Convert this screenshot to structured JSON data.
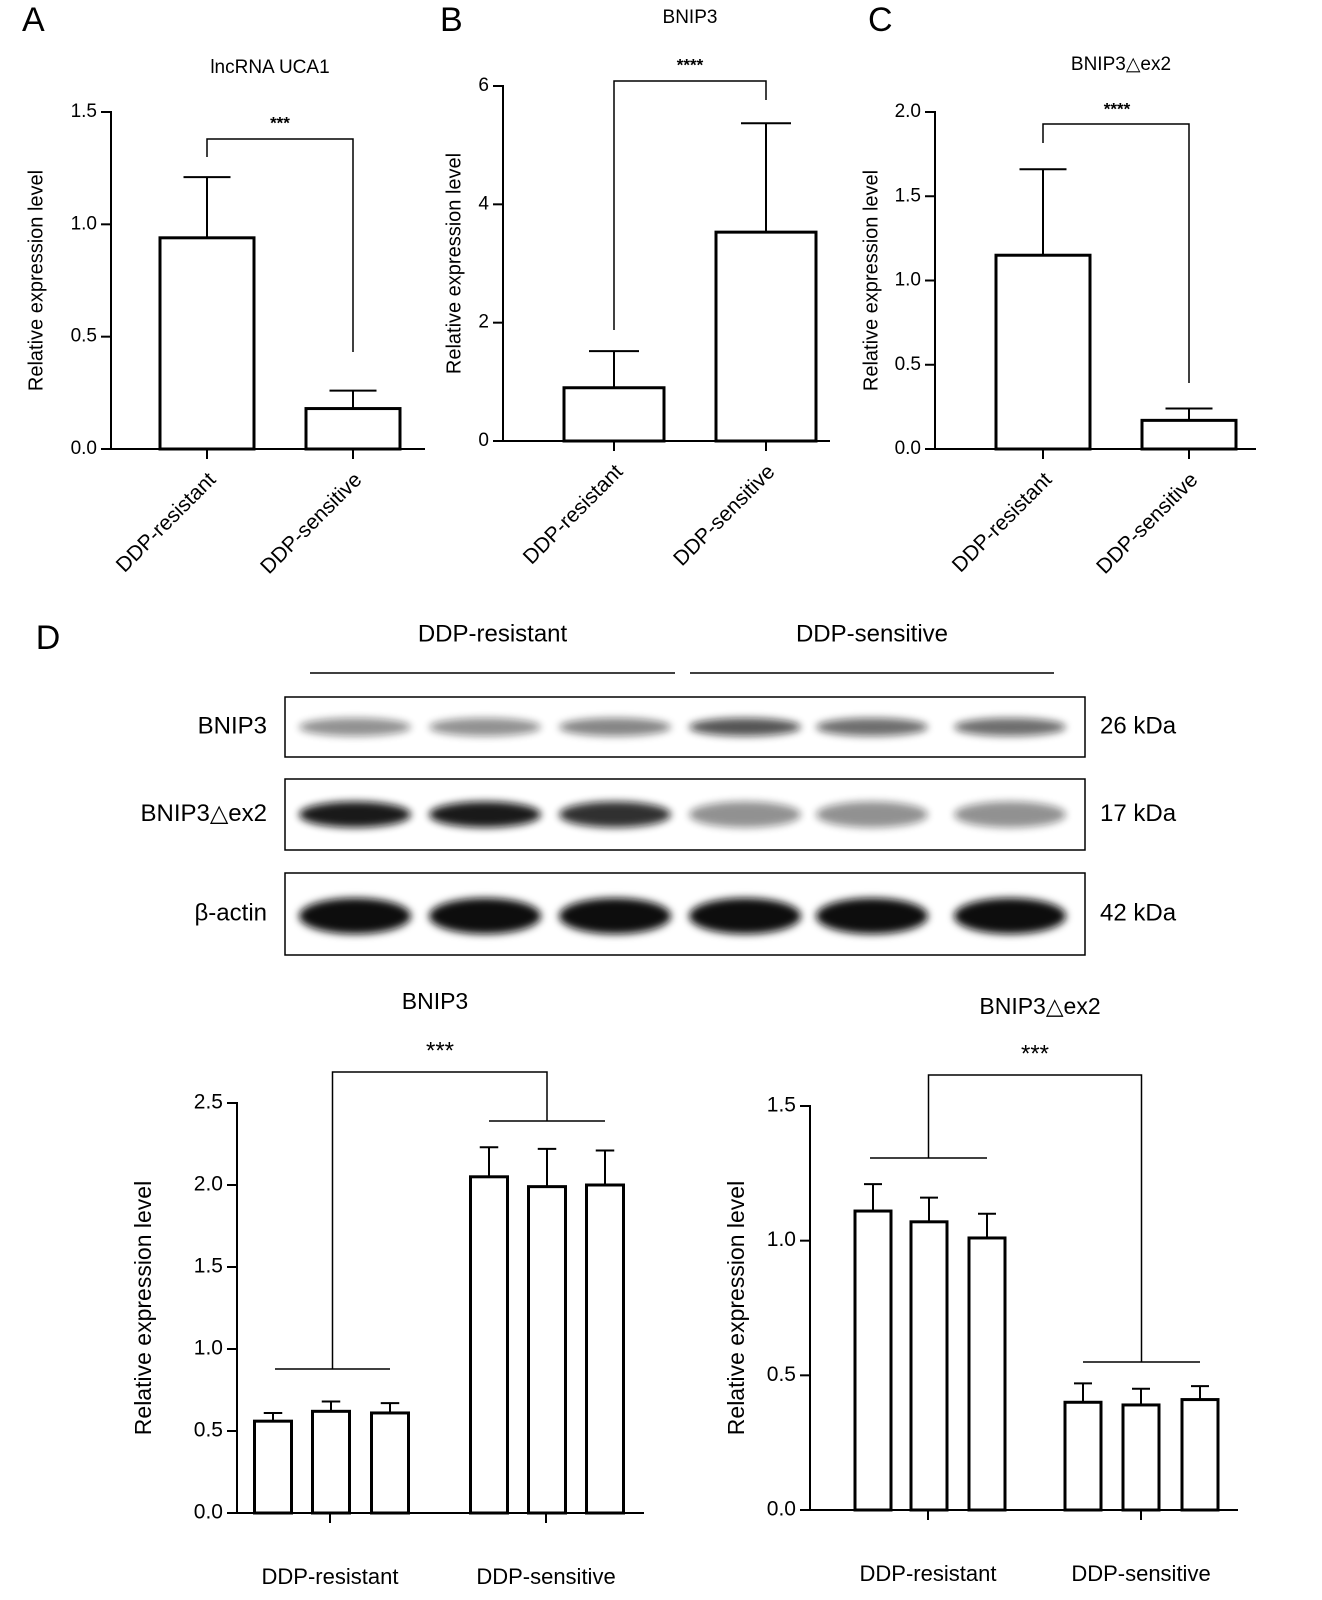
{
  "chart_data": [
    {
      "type": "bar",
      "panel": "A",
      "title": "lncRNA UCA1",
      "ylabel": "Relative expression level",
      "categories": [
        "DDP-resistant",
        "DDP-sensitive"
      ],
      "values": [
        0.94,
        0.18
      ],
      "errors": [
        0.27,
        0.08
      ],
      "color": "#ffffff",
      "edge_color": "#000000",
      "ylim": [
        0,
        1.5
      ],
      "yticks": [
        {
          "value": 0,
          "label": "0.0"
        },
        0.5,
        {
          "value": 1,
          "label": "1.0"
        },
        1.5
      ],
      "significance": "***"
    },
    {
      "type": "bar",
      "panel": "B",
      "title": "BNIP3",
      "ylabel": "Relative expression level",
      "categories": [
        "DDP-resistant",
        "DDP-sensitive"
      ],
      "values": [
        0.9,
        3.53
      ],
      "errors": [
        0.62,
        1.84
      ],
      "color": "#ffffff",
      "edge_color": "#000000",
      "ylim": [
        0,
        6
      ],
      "yticks": [
        0,
        2,
        4,
        6
      ],
      "significance": "****"
    },
    {
      "type": "bar",
      "panel": "C",
      "title": "BNIP3△ex2",
      "ylabel": "Relative expression level",
      "categories": [
        "DDP-resistant",
        "DDP-sensitive"
      ],
      "values": [
        1.15,
        0.17
      ],
      "errors": [
        0.51,
        0.07
      ],
      "color": "#ffffff",
      "edge_color": "#000000",
      "ylim": [
        0,
        2
      ],
      "yticks": [
        {
          "value": 0,
          "label": "0.0"
        },
        0.5,
        {
          "value": 1,
          "label": "1.0"
        },
        1.5,
        {
          "value": 2,
          "label": "2.0"
        }
      ],
      "significance": "****"
    },
    {
      "type": "bar",
      "title": "BNIP3",
      "ylabel": "Relative expression level",
      "categories": [
        null,
        null,
        null,
        null,
        null,
        null
      ],
      "group_labels": [
        "DDP-resistant",
        "DDP-sensitive"
      ],
      "values": [
        0.56,
        0.62,
        0.61,
        2.05,
        1.99,
        2.0
      ],
      "errors": [
        0.05,
        0.06,
        0.06,
        0.18,
        0.23,
        0.21
      ],
      "color": "#ffffff",
      "edge_color": "#000000",
      "ylim": [
        0,
        2.5
      ],
      "yticks": [
        {
          "value": 0,
          "label": "0.0"
        },
        0.5,
        {
          "value": 1,
          "label": "1.0"
        },
        1.5,
        {
          "value": 2,
          "label": "2.0"
        },
        2.5
      ],
      "significance": "***"
    },
    {
      "type": "bar",
      "title": "BNIP3△ex2",
      "ylabel": "Relative expression level",
      "categories": [
        null,
        null,
        null,
        null,
        null,
        null
      ],
      "group_labels": [
        "DDP-resistant",
        "DDP-sensitive"
      ],
      "values": [
        1.11,
        1.07,
        1.01,
        0.4,
        0.39,
        0.41
      ],
      "errors": [
        0.1,
        0.09,
        0.09,
        0.07,
        0.06,
        0.05
      ],
      "color": "#ffffff",
      "edge_color": "#000000",
      "ylim": [
        0,
        1.5
      ],
      "yticks": [
        {
          "value": 0,
          "label": "0.0"
        },
        0.5,
        {
          "value": 1,
          "label": "1.0"
        },
        1.5
      ],
      "significance": "***"
    }
  ],
  "blot": {
    "panel": "D",
    "groups": [
      "DDP-resistant",
      "DDP-sensitive"
    ],
    "rows": [
      {
        "label": "BNIP3",
        "size": "26 kDa"
      },
      {
        "label": "BNIP3△ex2",
        "size": "17 kDa"
      },
      {
        "label": "β-actin",
        "size": "42 kDa"
      }
    ]
  }
}
